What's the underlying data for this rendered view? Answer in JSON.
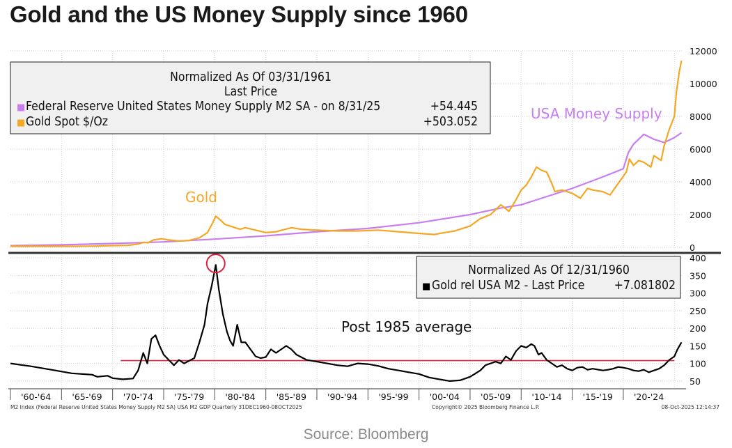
{
  "headline": "Gold and the US Money Supply since 1960",
  "source": "Source: Bloomberg",
  "colors": {
    "gold": "#f5a623",
    "money_supply": "#c97ef0",
    "ratio": "#000000",
    "average": "#e0203c",
    "circle": "#e0203c"
  },
  "chart_data": [
    {
      "type": "line",
      "panel": "top",
      "legend": {
        "title_line1": "Normalized As Of 03/31/1961",
        "title_line2": "Last Price",
        "entries": [
          {
            "marker": "■",
            "label": "Federal Reserve United States Money Supply M2 SA -   on 8/31/25",
            "value": "+54.445",
            "color": "#c97ef0"
          },
          {
            "marker": "■",
            "label": "Gold Spot $/Oz",
            "value": "+503.052",
            "color": "#f5a623"
          }
        ],
        "placement": "top-left"
      },
      "annotations": {
        "gold": "Gold",
        "money_supply": "USA Money Supply"
      },
      "ylim": [
        -300,
        12000
      ],
      "yticks": [
        0,
        2000,
        4000,
        6000,
        8000,
        10000,
        12000
      ],
      "ytick_labels": [
        "0",
        "2000",
        "4000",
        "6000",
        "8000",
        "10000",
        "12000"
      ],
      "xlim": [
        1960.0,
        2025.8
      ],
      "grid": true,
      "series": [
        {
          "name": "Gold Spot $/Oz",
          "key": "gold",
          "x": [
            1960,
            1965,
            1968,
            1970,
            1971.5,
            1972.5,
            1973,
            1973.5,
            1974,
            1974.8,
            1975.5,
            1976.5,
            1977.5,
            1978.5,
            1979.3,
            1979.8,
            1980.1,
            1980.5,
            1981,
            1982,
            1982.5,
            1983,
            1984,
            1985,
            1986,
            1987.5,
            1988.5,
            1990,
            1992,
            1994,
            1996,
            1998,
            2000,
            2001.5,
            2002.5,
            2003.5,
            2004,
            2005,
            2006,
            2007,
            2008,
            2008.8,
            2009.5,
            2010,
            2010.5,
            2011,
            2011.5,
            2012,
            2012.5,
            2013,
            2013.3,
            2014,
            2015,
            2015.8,
            2016.5,
            2017,
            2018,
            2018.7,
            2019.5,
            2020.3,
            2020.6,
            2021,
            2021.5,
            2022,
            2022.7,
            2023,
            2023.7,
            2024,
            2024.5,
            2025,
            2025.2,
            2025.5,
            2025.7
          ],
          "y": [
            60,
            60,
            70,
            105,
            120,
            200,
            300,
            280,
            450,
            520,
            450,
            380,
            420,
            580,
            900,
            1500,
            1900,
            1700,
            1400,
            1200,
            1100,
            1200,
            1050,
            900,
            950,
            1200,
            1100,
            1050,
            1000,
            1000,
            1050,
            950,
            850,
            780,
            900,
            1000,
            1100,
            1300,
            1750,
            2000,
            2600,
            2200,
            2900,
            3500,
            3800,
            4300,
            4900,
            4700,
            4600,
            3900,
            3400,
            3500,
            3300,
            3000,
            3600,
            3500,
            3400,
            3200,
            3900,
            4600,
            5400,
            5000,
            5300,
            5200,
            4900,
            5600,
            5300,
            6200,
            7200,
            8000,
            9500,
            10800,
            11400
          ]
        },
        {
          "name": "Federal Reserve United States Money Supply M2 SA",
          "key": "money_supply",
          "x": [
            1960,
            1965,
            1970,
            1975,
            1980,
            1985,
            1990,
            1995,
            2000,
            2005,
            2008,
            2010,
            2012,
            2015,
            2018,
            2020,
            2020.5,
            2021,
            2022,
            2023,
            2024,
            2025,
            2025.7
          ],
          "y": [
            100,
            150,
            230,
            330,
            500,
            700,
            950,
            1150,
            1500,
            2000,
            2400,
            2600,
            3000,
            3600,
            4300,
            4800,
            5800,
            6300,
            6900,
            6600,
            6400,
            6700,
            7000
          ]
        }
      ]
    },
    {
      "type": "line",
      "panel": "bottom",
      "legend": {
        "title_line1": "Normalized As Of 12/31/1960",
        "entries": [
          {
            "marker": "■",
            "label": "Gold rel USA M2 - Last Price",
            "value": "+7.081802",
            "color": "#000000"
          }
        ],
        "placement": "top-right"
      },
      "annotations": {
        "average": "Post 1985 average"
      },
      "average_value": 108,
      "ylim": [
        28,
        412
      ],
      "yticks": [
        50,
        100,
        150,
        200,
        250,
        300,
        350,
        400
      ],
      "ytick_labels": [
        "50",
        "100",
        "150",
        "200",
        "250",
        "300",
        "350",
        "400"
      ],
      "xlim": [
        1960.0,
        2025.8
      ],
      "grid": true,
      "peak_marker": {
        "x": 1980.1,
        "y": 380
      },
      "series": [
        {
          "name": "Gold rel USA M2",
          "key": "ratio",
          "x": [
            1960,
            1962,
            1964,
            1966,
            1968,
            1968.5,
            1969.5,
            1970,
            1971,
            1972,
            1972.5,
            1973,
            1973.4,
            1973.8,
            1974.2,
            1974.6,
            1975,
            1975.5,
            1976,
            1976.5,
            1977,
            1978,
            1978.5,
            1979,
            1979.3,
            1979.7,
            1980.1,
            1980.4,
            1980.8,
            1981.2,
            1981.5,
            1981.8,
            1982.2,
            1982.6,
            1983,
            1983.5,
            1984,
            1984.5,
            1985,
            1985.5,
            1986,
            1987,
            1987.5,
            1988,
            1989,
            1990,
            1991,
            1992,
            1993,
            1994,
            1995,
            1996,
            1997,
            1998,
            1999,
            2000,
            2001,
            2002,
            2003,
            2004,
            2005,
            2006,
            2006.5,
            2007,
            2007.5,
            2008,
            2008.5,
            2009,
            2009.5,
            2010,
            2010.5,
            2011,
            2011.3,
            2011.7,
            2012,
            2012.5,
            2013,
            2013.5,
            2014,
            2014.5,
            2015,
            2015.5,
            2016,
            2016.5,
            2017,
            2018,
            2018.5,
            2019,
            2019.5,
            2020,
            2020.5,
            2021,
            2021.5,
            2022,
            2022.5,
            2023,
            2023.5,
            2024,
            2024.5,
            2025,
            2025.3,
            2025.7
          ],
          "y": [
            100,
            92,
            82,
            72,
            68,
            62,
            65,
            58,
            55,
            57,
            80,
            130,
            100,
            170,
            180,
            150,
            125,
            110,
            95,
            110,
            100,
            115,
            160,
            210,
            270,
            320,
            380,
            310,
            240,
            190,
            165,
            150,
            210,
            160,
            160,
            140,
            120,
            115,
            118,
            140,
            130,
            150,
            140,
            125,
            110,
            105,
            100,
            95,
            92,
            100,
            98,
            93,
            85,
            80,
            75,
            70,
            60,
            55,
            50,
            52,
            62,
            80,
            95,
            100,
            105,
            100,
            120,
            110,
            135,
            150,
            145,
            155,
            150,
            125,
            130,
            110,
            100,
            90,
            95,
            85,
            80,
            88,
            90,
            82,
            85,
            80,
            82,
            85,
            90,
            88,
            85,
            80,
            78,
            82,
            75,
            80,
            85,
            95,
            110,
            120,
            140,
            160
          ]
        }
      ],
      "xtick_labels": [
        "'60-'64",
        "'65-'69",
        "'70-'74",
        "'75-'79",
        "'80-'84",
        "'85-'89",
        "'90-'94",
        "'95-'99",
        "'00-'04",
        "'05-'09",
        "'10-'14",
        "'15-'19",
        "'20-'24"
      ]
    }
  ],
  "footer": {
    "left": "M2 Index (Federal Reserve United States Money Supply M2 SA) USA M2 GDP Quarterly 31DEC1960-08OCT2025",
    "center": "Copyright© 2025 Bloomberg Finance L.P.",
    "right": "08-Oct-2025 12:14:37"
  }
}
